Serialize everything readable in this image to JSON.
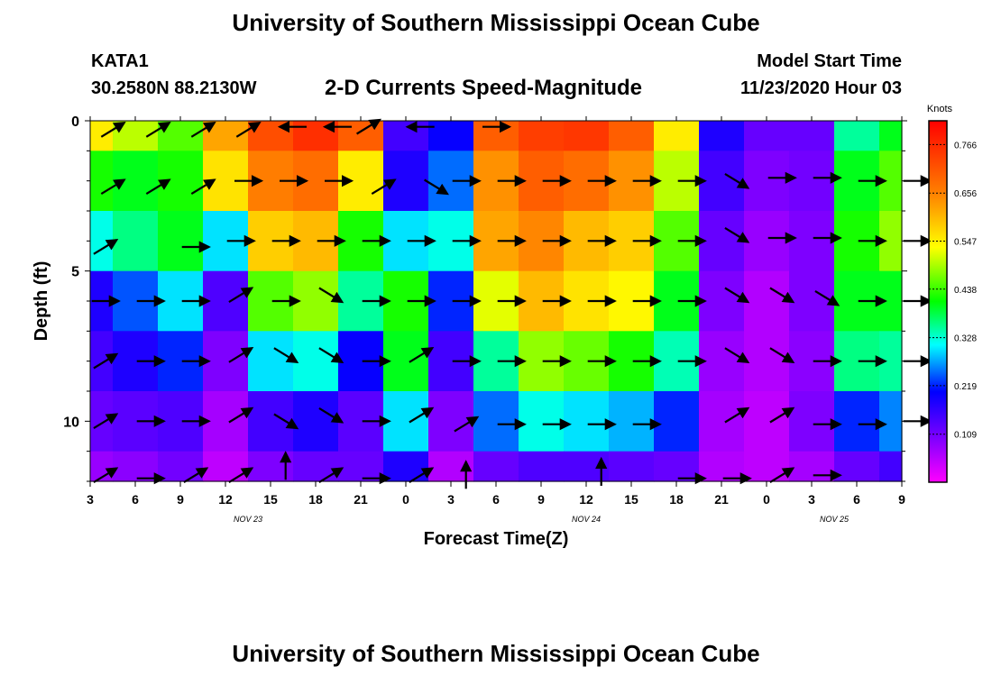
{
  "header": {
    "title": "University of Southern Mississippi Ocean Cube",
    "station": "KATA1",
    "coords": "30.2580N 88.2130W",
    "subtitle": "2-D Currents Speed-Magnitude",
    "model_label": "Model Start Time",
    "model_time": "11/23/2020 Hour 03"
  },
  "footer": {
    "title": "University of Southern Mississippi Ocean Cube"
  },
  "chart_data": {
    "type": "heatmap",
    "title": "2-D Currents Speed-Magnitude",
    "xlabel": "Forecast Time(Z)",
    "ylabel": "Depth (ft)",
    "x_ticks": [
      "3",
      "6",
      "9",
      "12",
      "15",
      "18",
      "21",
      "0",
      "3",
      "6",
      "9",
      "12",
      "15",
      "18",
      "21",
      "0",
      "3",
      "6",
      "9"
    ],
    "date_labels": [
      {
        "text": "NOV 23",
        "tick_index": 3.5
      },
      {
        "text": "NOV 24",
        "tick_index": 11
      },
      {
        "text": "NOV 25",
        "tick_index": 16.5
      }
    ],
    "y_ticks": [
      0,
      5,
      10
    ],
    "ylim": [
      12,
      0
    ],
    "colorbar": {
      "label": "Knots",
      "ticks": [
        0.766,
        0.656,
        0.547,
        0.438,
        0.328,
        0.219,
        0.109
      ],
      "range": [
        0.0,
        0.82
      ]
    },
    "depths_ft": [
      0,
      2,
      4,
      6,
      8,
      10,
      12
    ],
    "hours": [
      3,
      6,
      9,
      12,
      15,
      18,
      21,
      24,
      27,
      30,
      33,
      36,
      39,
      42,
      45,
      48,
      51,
      54,
      57
    ],
    "speed_knots": [
      [
        0.55,
        0.5,
        0.45,
        0.62,
        0.72,
        0.76,
        0.7,
        0.15,
        0.2,
        0.7,
        0.74,
        0.75,
        0.7,
        0.55,
        0.18,
        0.12,
        0.12,
        0.35,
        0.4
      ],
      [
        0.42,
        0.4,
        0.42,
        0.56,
        0.66,
        0.68,
        0.55,
        0.18,
        0.25,
        0.64,
        0.7,
        0.68,
        0.64,
        0.5,
        0.15,
        0.1,
        0.11,
        0.4,
        0.45
      ],
      [
        0.32,
        0.36,
        0.4,
        0.3,
        0.58,
        0.6,
        0.42,
        0.3,
        0.32,
        0.62,
        0.65,
        0.6,
        0.58,
        0.45,
        0.12,
        0.08,
        0.1,
        0.42,
        0.48
      ],
      [
        0.18,
        0.24,
        0.3,
        0.14,
        0.45,
        0.48,
        0.35,
        0.42,
        0.22,
        0.52,
        0.6,
        0.56,
        0.54,
        0.4,
        0.1,
        0.06,
        0.1,
        0.4,
        0.4
      ],
      [
        0.15,
        0.18,
        0.22,
        0.1,
        0.3,
        0.32,
        0.2,
        0.4,
        0.15,
        0.35,
        0.48,
        0.46,
        0.42,
        0.34,
        0.08,
        0.06,
        0.09,
        0.36,
        0.35
      ],
      [
        0.12,
        0.13,
        0.14,
        0.07,
        0.15,
        0.18,
        0.13,
        0.3,
        0.1,
        0.25,
        0.32,
        0.3,
        0.28,
        0.22,
        0.07,
        0.05,
        0.1,
        0.22,
        0.26
      ],
      [
        0.08,
        0.09,
        0.11,
        0.05,
        0.1,
        0.12,
        0.12,
        0.18,
        0.06,
        0.12,
        0.14,
        0.14,
        0.13,
        0.12,
        0.06,
        0.05,
        0.07,
        0.12,
        0.15
      ]
    ],
    "arrows": [
      {
        "h": 4.5,
        "d": 0.3,
        "dir": "ne"
      },
      {
        "h": 7.5,
        "d": 0.3,
        "dir": "ne"
      },
      {
        "h": 10.5,
        "d": 0.3,
        "dir": "ne"
      },
      {
        "h": 13.5,
        "d": 0.3,
        "dir": "ne"
      },
      {
        "h": 16.5,
        "d": 0.2,
        "dir": "w"
      },
      {
        "h": 19.5,
        "d": 0.2,
        "dir": "w"
      },
      {
        "h": 21.5,
        "d": 0.2,
        "dir": "ne"
      },
      {
        "h": 25,
        "d": 0.2,
        "dir": "w"
      },
      {
        "h": 30,
        "d": 0.2,
        "dir": "e"
      },
      {
        "h": 4.5,
        "d": 2.2,
        "dir": "ne"
      },
      {
        "h": 7.5,
        "d": 2.2,
        "dir": "ne"
      },
      {
        "h": 10.5,
        "d": 2.2,
        "dir": "ne"
      },
      {
        "h": 13.5,
        "d": 2.0,
        "dir": "e"
      },
      {
        "h": 16.5,
        "d": 2.0,
        "dir": "e"
      },
      {
        "h": 19.5,
        "d": 2.0,
        "dir": "e"
      },
      {
        "h": 22.5,
        "d": 2.2,
        "dir": "ne"
      },
      {
        "h": 26,
        "d": 2.2,
        "dir": "se"
      },
      {
        "h": 28,
        "d": 2.0,
        "dir": "e"
      },
      {
        "h": 31,
        "d": 2.0,
        "dir": "e"
      },
      {
        "h": 34,
        "d": 2.0,
        "dir": "e"
      },
      {
        "h": 37,
        "d": 2.0,
        "dir": "e"
      },
      {
        "h": 40,
        "d": 2.0,
        "dir": "e"
      },
      {
        "h": 43,
        "d": 2.0,
        "dir": "e"
      },
      {
        "h": 46,
        "d": 2.0,
        "dir": "se"
      },
      {
        "h": 49,
        "d": 1.9,
        "dir": "e"
      },
      {
        "h": 52,
        "d": 1.9,
        "dir": "e"
      },
      {
        "h": 55,
        "d": 2.0,
        "dir": "e"
      },
      {
        "h": 58,
        "d": 2.0,
        "dir": "e"
      },
      {
        "h": 4,
        "d": 4.2,
        "dir": "ne"
      },
      {
        "h": 10,
        "d": 4.2,
        "dir": "e"
      },
      {
        "h": 13,
        "d": 4.0,
        "dir": "e"
      },
      {
        "h": 16,
        "d": 4.0,
        "dir": "e"
      },
      {
        "h": 19,
        "d": 4.0,
        "dir": "e"
      },
      {
        "h": 22,
        "d": 4.0,
        "dir": "e"
      },
      {
        "h": 25,
        "d": 4.0,
        "dir": "e"
      },
      {
        "h": 28,
        "d": 4.0,
        "dir": "e"
      },
      {
        "h": 31,
        "d": 4.0,
        "dir": "e"
      },
      {
        "h": 34,
        "d": 4.0,
        "dir": "e"
      },
      {
        "h": 37,
        "d": 4.0,
        "dir": "e"
      },
      {
        "h": 40,
        "d": 4.0,
        "dir": "e"
      },
      {
        "h": 43,
        "d": 4.0,
        "dir": "e"
      },
      {
        "h": 46,
        "d": 3.8,
        "dir": "se"
      },
      {
        "h": 49,
        "d": 3.9,
        "dir": "e"
      },
      {
        "h": 52,
        "d": 3.9,
        "dir": "e"
      },
      {
        "h": 55,
        "d": 4.0,
        "dir": "e"
      },
      {
        "h": 58,
        "d": 4.0,
        "dir": "e"
      },
      {
        "h": 4,
        "d": 6.0,
        "dir": "e"
      },
      {
        "h": 7,
        "d": 6.0,
        "dir": "e"
      },
      {
        "h": 10,
        "d": 6.0,
        "dir": "e"
      },
      {
        "h": 13,
        "d": 5.8,
        "dir": "ne"
      },
      {
        "h": 16,
        "d": 6.0,
        "dir": "e"
      },
      {
        "h": 19,
        "d": 5.8,
        "dir": "se"
      },
      {
        "h": 22,
        "d": 6.0,
        "dir": "e"
      },
      {
        "h": 25,
        "d": 6.0,
        "dir": "e"
      },
      {
        "h": 28,
        "d": 6.0,
        "dir": "e"
      },
      {
        "h": 31,
        "d": 6.0,
        "dir": "e"
      },
      {
        "h": 34,
        "d": 6.0,
        "dir": "e"
      },
      {
        "h": 37,
        "d": 6.0,
        "dir": "e"
      },
      {
        "h": 40,
        "d": 6.0,
        "dir": "e"
      },
      {
        "h": 43,
        "d": 6.0,
        "dir": "e"
      },
      {
        "h": 46,
        "d": 5.8,
        "dir": "se"
      },
      {
        "h": 49,
        "d": 5.8,
        "dir": "se"
      },
      {
        "h": 52,
        "d": 5.9,
        "dir": "se"
      },
      {
        "h": 55,
        "d": 6.0,
        "dir": "e"
      },
      {
        "h": 58,
        "d": 6.0,
        "dir": "e"
      },
      {
        "h": 4,
        "d": 8.0,
        "dir": "ne"
      },
      {
        "h": 7,
        "d": 8.0,
        "dir": "e"
      },
      {
        "h": 10,
        "d": 8.0,
        "dir": "e"
      },
      {
        "h": 13,
        "d": 7.8,
        "dir": "ne"
      },
      {
        "h": 16,
        "d": 7.8,
        "dir": "se"
      },
      {
        "h": 19,
        "d": 7.8,
        "dir": "se"
      },
      {
        "h": 22,
        "d": 8.0,
        "dir": "e"
      },
      {
        "h": 25,
        "d": 7.8,
        "dir": "ne"
      },
      {
        "h": 28,
        "d": 8.0,
        "dir": "e"
      },
      {
        "h": 31,
        "d": 8.0,
        "dir": "e"
      },
      {
        "h": 34,
        "d": 8.0,
        "dir": "e"
      },
      {
        "h": 37,
        "d": 8.0,
        "dir": "e"
      },
      {
        "h": 40,
        "d": 8.0,
        "dir": "e"
      },
      {
        "h": 43,
        "d": 8.0,
        "dir": "e"
      },
      {
        "h": 46,
        "d": 7.8,
        "dir": "se"
      },
      {
        "h": 49,
        "d": 7.8,
        "dir": "se"
      },
      {
        "h": 52,
        "d": 8.0,
        "dir": "e"
      },
      {
        "h": 55,
        "d": 8.0,
        "dir": "e"
      },
      {
        "h": 58,
        "d": 8.0,
        "dir": "e"
      },
      {
        "h": 4,
        "d": 10.0,
        "dir": "ne"
      },
      {
        "h": 7,
        "d": 10.0,
        "dir": "e"
      },
      {
        "h": 10,
        "d": 10.0,
        "dir": "e"
      },
      {
        "h": 13,
        "d": 9.8,
        "dir": "ne"
      },
      {
        "h": 16,
        "d": 10.0,
        "dir": "se"
      },
      {
        "h": 19,
        "d": 9.8,
        "dir": "se"
      },
      {
        "h": 22,
        "d": 10.0,
        "dir": "e"
      },
      {
        "h": 25,
        "d": 9.8,
        "dir": "ne"
      },
      {
        "h": 28,
        "d": 10.1,
        "dir": "ne"
      },
      {
        "h": 31,
        "d": 10.1,
        "dir": "e"
      },
      {
        "h": 34,
        "d": 10.1,
        "dir": "e"
      },
      {
        "h": 37,
        "d": 10.1,
        "dir": "e"
      },
      {
        "h": 40,
        "d": 10.1,
        "dir": "e"
      },
      {
        "h": 46,
        "d": 9.8,
        "dir": "ne"
      },
      {
        "h": 49,
        "d": 9.8,
        "dir": "ne"
      },
      {
        "h": 52,
        "d": 10.1,
        "dir": "e"
      },
      {
        "h": 55,
        "d": 10.1,
        "dir": "e"
      },
      {
        "h": 58,
        "d": 10.0,
        "dir": "e"
      },
      {
        "h": 4,
        "d": 11.8,
        "dir": "ne"
      },
      {
        "h": 7,
        "d": 11.9,
        "dir": "e"
      },
      {
        "h": 10,
        "d": 11.8,
        "dir": "ne"
      },
      {
        "h": 13,
        "d": 11.8,
        "dir": "ne"
      },
      {
        "h": 16,
        "d": 11.5,
        "dir": "n"
      },
      {
        "h": 19,
        "d": 11.8,
        "dir": "ne"
      },
      {
        "h": 22,
        "d": 11.9,
        "dir": "e"
      },
      {
        "h": 25,
        "d": 11.8,
        "dir": "ne"
      },
      {
        "h": 28,
        "d": 11.8,
        "dir": "n"
      },
      {
        "h": 37,
        "d": 11.7,
        "dir": "n"
      },
      {
        "h": 43,
        "d": 11.9,
        "dir": "e"
      },
      {
        "h": 46,
        "d": 11.9,
        "dir": "e"
      },
      {
        "h": 49,
        "d": 11.8,
        "dir": "ne"
      },
      {
        "h": 52,
        "d": 11.8,
        "dir": "e"
      }
    ]
  }
}
